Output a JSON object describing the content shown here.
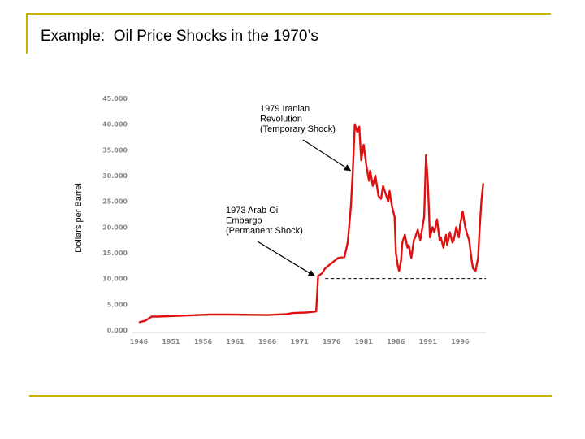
{
  "slide": {
    "title": "Example:  Oil Price Shocks in the 1970’s"
  },
  "chart_data": {
    "type": "line",
    "ylabel": "Dollars per Barrel",
    "ylim": [
      0,
      45
    ],
    "xlim": [
      1945,
      2000
    ],
    "y_ticks": [
      "0.000",
      "5.000",
      "10.000",
      "15.000",
      "20.000",
      "25.000",
      "30.000",
      "35.000",
      "40.000",
      "45.000"
    ],
    "x_ticks": [
      "1946",
      "1951",
      "1956",
      "1961",
      "1966",
      "1971",
      "1976",
      "1981",
      "1986",
      "1991",
      "1996"
    ],
    "series": [
      {
        "color": "#e01010",
        "x": [
          1946,
          1947,
          1948,
          1949,
          1953,
          1957,
          1960,
          1966,
          1969,
          1970,
          1972,
          1973.6,
          1973.9,
          1974.5,
          1975,
          1976,
          1977,
          1978,
          1978.5,
          1979,
          1979.3,
          1979.6,
          1980,
          1980.3,
          1980.6,
          1981,
          1981.4,
          1981.8,
          1982,
          1982.4,
          1982.8,
          1983,
          1983.3,
          1983.7,
          1984,
          1984.4,
          1984.8,
          1985,
          1985.4,
          1985.8,
          1986,
          1986.3,
          1986.5,
          1986.8,
          1987,
          1987.4,
          1987.8,
          1988,
          1988.4,
          1988.8,
          1989,
          1989.4,
          1989.8,
          1990,
          1990.4,
          1990.7,
          1991,
          1991.3,
          1991.7,
          1992,
          1992.4,
          1992.8,
          1993,
          1993.4,
          1993.8,
          1994,
          1994.4,
          1994.8,
          1995,
          1995.4,
          1995.8,
          1996,
          1996.4,
          1996.8,
          1997,
          1997.4,
          1997.8,
          1998,
          1998.4,
          1998.8,
          1999,
          1999.3,
          1999.6
        ],
        "values": [
          1.5,
          1.8,
          2.6,
          2.6,
          2.8,
          3.0,
          3.0,
          2.9,
          3.1,
          3.3,
          3.4,
          3.6,
          10.5,
          11.0,
          12.0,
          13.0,
          14.0,
          14.2,
          17.0,
          24.0,
          31.0,
          40.0,
          38.5,
          39.5,
          33.0,
          36.0,
          32.0,
          29.0,
          31.0,
          28.0,
          30.0,
          28.5,
          26.0,
          25.5,
          28.0,
          26.5,
          25.0,
          27.0,
          24.0,
          22.0,
          15.0,
          12.5,
          11.5,
          13.5,
          17.0,
          18.5,
          16.0,
          16.5,
          14.0,
          17.5,
          18.0,
          19.5,
          17.5,
          19.0,
          22.0,
          34.0,
          28.0,
          18.0,
          20.0,
          19.0,
          21.5,
          17.5,
          18.0,
          16.0,
          18.5,
          16.5,
          19.0,
          17.0,
          17.5,
          20.0,
          18.0,
          20.5,
          23.0,
          20.0,
          19.0,
          17.5,
          13.5,
          12.0,
          11.5,
          14.0,
          19.0,
          25.0,
          28.5
        ]
      }
    ],
    "reference_lines": [
      {
        "style": "dashed",
        "y": 10.0,
        "x_from": 1975,
        "x_to": 2000
      }
    ],
    "annotations": [
      {
        "lines": [
          "1979 Iranian",
          "Revolution",
          "(Temporary Shock)"
        ],
        "arrow_to": [
          1979.2,
          30.5
        ]
      },
      {
        "lines": [
          "1973 Arab Oil",
          "Embargo",
          "(Permanent Shock)"
        ],
        "arrow_to": [
          1973.6,
          10.0
        ]
      }
    ]
  }
}
